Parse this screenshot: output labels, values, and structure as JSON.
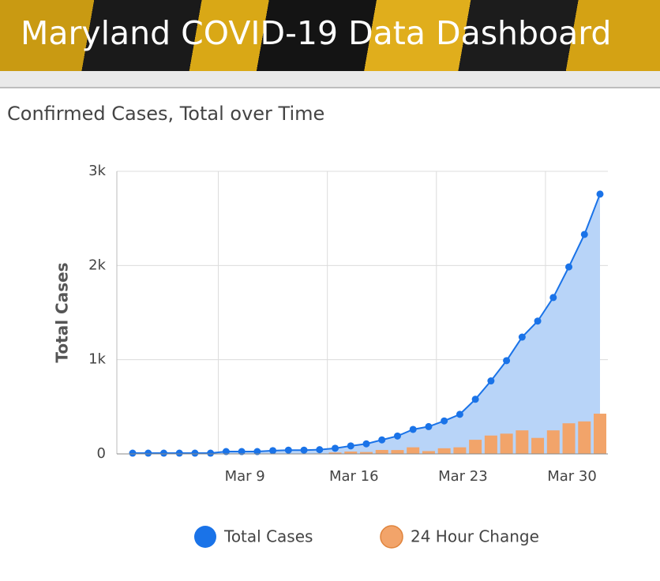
{
  "header": {
    "title": "Maryland COVID-19 Data Dashboard"
  },
  "chart_data": {
    "type": "bar_line_area",
    "title": "Confirmed Cases, Total over Time",
    "y_label": "Total Cases",
    "categories": [
      null,
      null,
      null,
      null,
      null,
      null,
      null,
      "Mar 9",
      null,
      null,
      null,
      null,
      null,
      null,
      "Mar 16",
      null,
      null,
      null,
      null,
      null,
      null,
      "Mar 23",
      null,
      null,
      null,
      null,
      null,
      null,
      "Mar 30",
      null,
      null
    ],
    "series": [
      {
        "name": "Total Cases",
        "color": "#1a73e8",
        "area_color": "#b8d4f8",
        "values": [
          8,
          8,
          8,
          8,
          8,
          8,
          25,
          25,
          25,
          35,
          40,
          40,
          45,
          60,
          85,
          107,
          149,
          190,
          260,
          290,
          350,
          420,
          580,
          775,
          990,
          1240,
          1410,
          1660,
          1985,
          2330,
          2758
        ]
      },
      {
        "name": "24 Hour Change",
        "color": "#f2a46a",
        "values": [
          0,
          0,
          0,
          0,
          0,
          0,
          0,
          0,
          0,
          0,
          0,
          0,
          5,
          15,
          25,
          20,
          42,
          41,
          70,
          30,
          60,
          70,
          150,
          195,
          215,
          250,
          170,
          250,
          325,
          345,
          427
        ]
      }
    ],
    "ylim": [
      0,
      3000
    ],
    "yticks": [
      {
        "value": 0,
        "label": "0"
      },
      {
        "value": 1000,
        "label": "1k"
      },
      {
        "value": 2000,
        "label": "2k"
      },
      {
        "value": 3000,
        "label": "3k"
      }
    ],
    "grid": true
  }
}
